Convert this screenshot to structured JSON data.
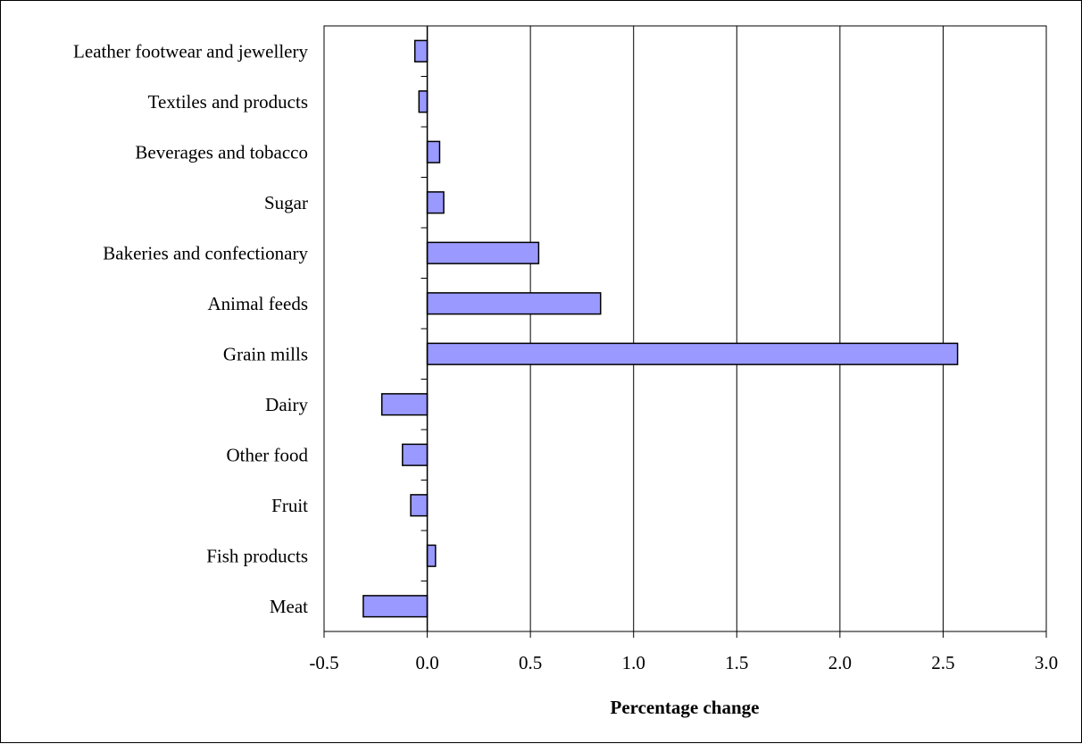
{
  "chart_data": {
    "type": "bar",
    "orientation": "horizontal",
    "categories": [
      "Leather footwear and jewellery",
      "Textiles and products",
      "Beverages and tobacco",
      "Sugar",
      "Bakeries and confectionary",
      "Animal feeds",
      "Grain mills",
      "Dairy",
      "Other food",
      "Fruit",
      "Fish products",
      "Meat"
    ],
    "values": [
      -0.06,
      -0.04,
      0.06,
      0.08,
      0.54,
      0.84,
      2.57,
      -0.22,
      -0.12,
      -0.08,
      0.04,
      -0.31
    ],
    "xlabel": "Percentage change",
    "ylabel": "",
    "xlim": [
      -0.5,
      3.0
    ],
    "xticks": [
      "-0.5",
      "0.0",
      "0.5",
      "1.0",
      "1.5",
      "2.0",
      "2.5",
      "3.0"
    ],
    "grid": "vertical",
    "bar_color": "#9999ff",
    "bar_edge_color": "#000000",
    "legend": "none"
  }
}
